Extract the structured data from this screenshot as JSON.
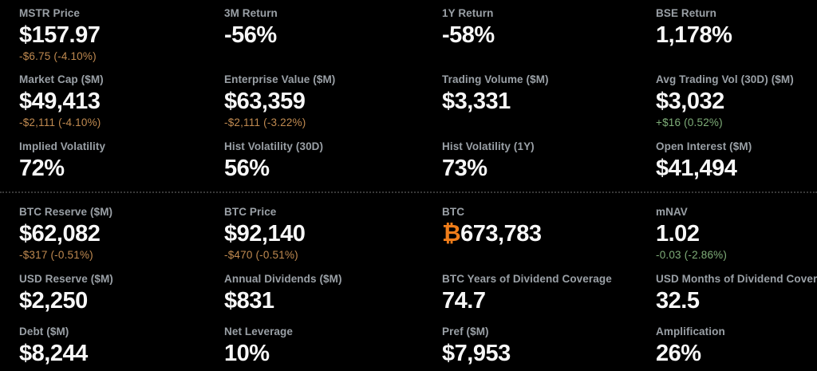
{
  "colors": {
    "background": "#000000",
    "label": "#9aa0a6",
    "value": "#f7f7f7",
    "negative": "#c08a50",
    "positive": "#7fae79",
    "bitcoin": "#ef7d1a",
    "divider": "#383838"
  },
  "sections": [
    {
      "name": "market-metrics-section",
      "cells": [
        {
          "label": "MSTR Price",
          "value": "$157.97",
          "change": "-$6.75 (-4.10%)",
          "change_direction": "negative"
        },
        {
          "label": "3M Return",
          "value": "-56%"
        },
        {
          "label": "1Y Return",
          "value": "-58%"
        },
        {
          "label": "BSE Return",
          "value": "1,178%"
        },
        {
          "label": "Market Cap ($M)",
          "value": "$49,413",
          "change": "-$2,111 (-4.10%)",
          "change_direction": "negative"
        },
        {
          "label": "Enterprise Value ($M)",
          "value": "$63,359",
          "change": "-$2,111 (-3.22%)",
          "change_direction": "negative"
        },
        {
          "label": "Trading Volume ($M)",
          "value": "$3,331"
        },
        {
          "label": "Avg Trading Vol (30D) ($M)",
          "value": "$3,032",
          "change": "+$16 (0.52%)",
          "change_direction": "positive"
        },
        {
          "label": "Implied Volatility",
          "value": "72%"
        },
        {
          "label": "Hist Volatility (30D)",
          "value": "56%"
        },
        {
          "label": "Hist Volatility (1Y)",
          "value": "73%"
        },
        {
          "label": "Open Interest ($M)",
          "value": "$41,494"
        }
      ]
    },
    {
      "name": "treasury-metrics-section",
      "cells": [
        {
          "label": "BTC Reserve ($M)",
          "value": "$62,082",
          "change": "-$317 (-0.51%)",
          "change_direction": "negative"
        },
        {
          "label": "BTC Price",
          "value": "$92,140",
          "change": "-$470 (-0.51%)",
          "change_direction": "negative"
        },
        {
          "label": "BTC",
          "value_prefix": "₿",
          "value": "673,783"
        },
        {
          "label": "mNAV",
          "value": "1.02",
          "change": "-0.03 (-2.86%)",
          "change_direction": "positive"
        },
        {
          "label": "USD Reserve ($M)",
          "value": "$2,250"
        },
        {
          "label": "Annual Dividends ($M)",
          "value": "$831"
        },
        {
          "label": "BTC Years of Dividend Coverage",
          "value": "74.7"
        },
        {
          "label": "USD Months of Dividend Coverage",
          "value": "32.5"
        },
        {
          "label": "Debt ($M)",
          "value": "$8,244"
        },
        {
          "label": "Net Leverage",
          "value": "10%"
        },
        {
          "label": "Pref ($M)",
          "value": "$7,953"
        },
        {
          "label": "Amplification",
          "value": "26%"
        }
      ]
    }
  ]
}
